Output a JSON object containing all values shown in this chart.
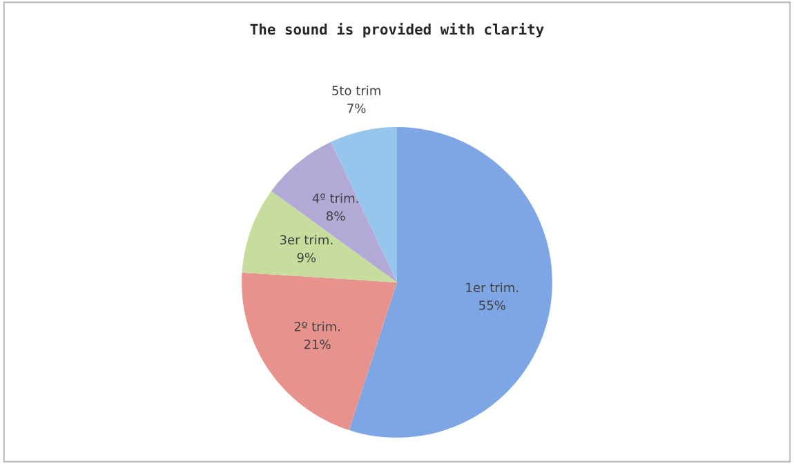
{
  "chart_data": {
    "type": "pie",
    "title": "The sound is provided with clarity",
    "categories": [
      "1er trim.",
      "2º trim.",
      "3er trim.",
      "4º trim.",
      "5to trim"
    ],
    "values": [
      55,
      21,
      9,
      8,
      7
    ],
    "colors": [
      "#7fa6e4",
      "#e8928e",
      "#c6dd9e",
      "#b3a9d6",
      "#94c6ee"
    ],
    "value_labels": [
      "55%",
      "21%",
      "9%",
      "8%",
      "7%"
    ],
    "legend": false
  }
}
